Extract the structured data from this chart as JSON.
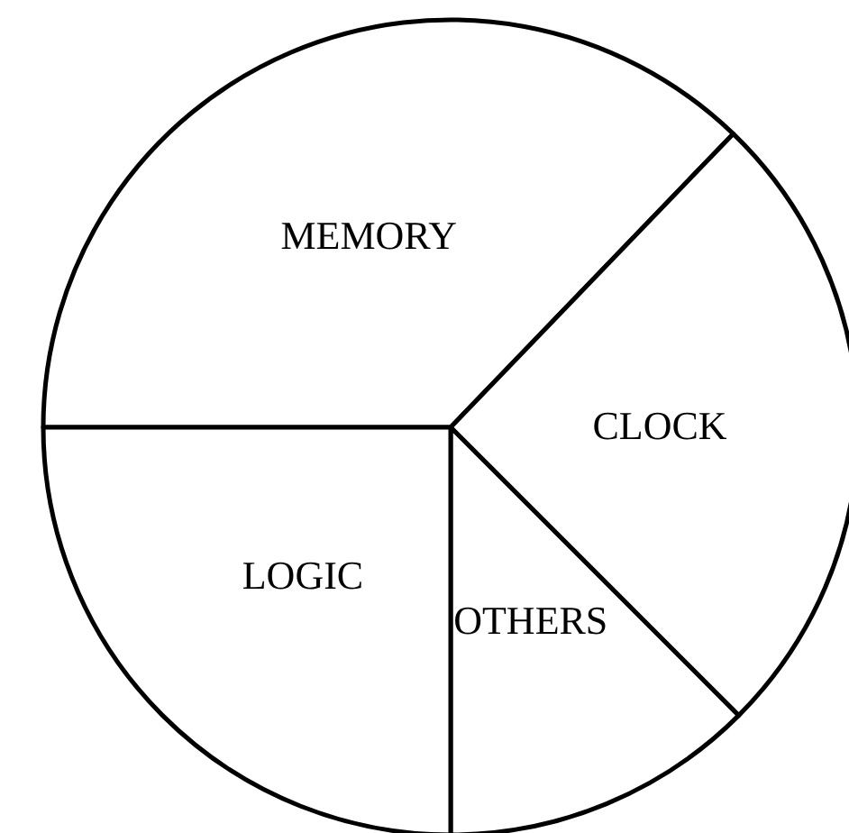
{
  "chart_data": {
    "type": "pie",
    "categories": [
      "MEMORY",
      "CLOCK",
      "OTHERS",
      "LOGIC"
    ],
    "values": [
      37.2,
      25.3,
      12.5,
      25
    ],
    "colors": [
      "#ffffff",
      "#ffffff",
      "#ffffff",
      "#ffffff"
    ],
    "legend": false
  }
}
